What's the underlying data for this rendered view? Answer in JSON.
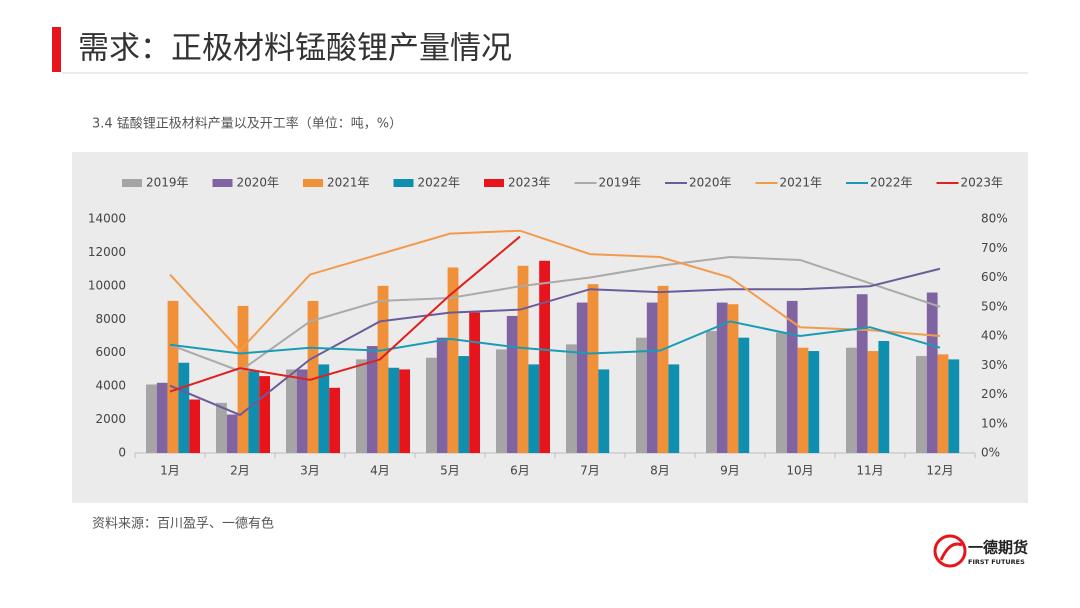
{
  "header": {
    "title": "需求：正极材料锰酸锂产量情况"
  },
  "chart_data": {
    "type": "combo",
    "title": "3.4 锰酸锂正极材料产量以及开工率（单位：吨，%）",
    "categories": [
      "1月",
      "2月",
      "3月",
      "4月",
      "5月",
      "6月",
      "7月",
      "8月",
      "9月",
      "10月",
      "11月",
      "12月"
    ],
    "ylim": [
      0,
      14000
    ],
    "yticks": [
      0,
      2000,
      4000,
      6000,
      8000,
      10000,
      12000,
      14000
    ],
    "y2lim": [
      0,
      80
    ],
    "y2ticks": [
      {
        "value": 0,
        "label": "0%"
      },
      {
        "value": 10,
        "label": "10%"
      },
      {
        "value": 20,
        "label": "20%"
      },
      {
        "value": 30,
        "label": "30%"
      },
      {
        "value": 40,
        "label": "40%"
      },
      {
        "value": 50,
        "label": "50%"
      },
      {
        "value": 60,
        "label": "60%"
      },
      {
        "value": 70,
        "label": "70%"
      },
      {
        "value": 80,
        "label": "80%"
      }
    ],
    "grid": false,
    "legend": "top",
    "series": [
      {
        "name": "2019年",
        "type": "bar",
        "color": "#a5a5a5",
        "values": [
          4100,
          3000,
          5000,
          5600,
          5700,
          6200,
          6500,
          6900,
          7300,
          7200,
          6300,
          5800
        ]
      },
      {
        "name": "2020年",
        "type": "bar",
        "color": "#8064a2",
        "values": [
          4200,
          2300,
          5000,
          6400,
          6900,
          8200,
          9000,
          9000,
          9000,
          9100,
          9500,
          9600
        ]
      },
      {
        "name": "2021年",
        "type": "bar",
        "color": "#f0913a",
        "values": [
          9100,
          8800,
          9100,
          10000,
          11100,
          11200,
          10100,
          10000,
          8900,
          6300,
          6100,
          5900
        ]
      },
      {
        "name": "2022年",
        "type": "bar",
        "color": "#0e8fb0",
        "values": [
          5400,
          4900,
          5300,
          5100,
          5800,
          5300,
          5000,
          5300,
          6900,
          6100,
          6700,
          5600
        ]
      },
      {
        "name": "2023年",
        "type": "bar",
        "color": "#e8141b",
        "values": [
          3200,
          4600,
          3900,
          5000,
          8400,
          11500,
          null,
          null,
          null,
          null,
          null,
          null
        ]
      },
      {
        "name": "2019年",
        "type": "line",
        "axis": "y2",
        "color": "#aaaaaa",
        "values": [
          37,
          28,
          45,
          52,
          53,
          57,
          60,
          64,
          67,
          66,
          58,
          50
        ]
      },
      {
        "name": "2020年",
        "type": "line",
        "axis": "y2",
        "color": "#6b5b9a",
        "values": [
          23,
          13,
          32,
          45,
          48,
          49,
          56,
          55,
          56,
          56,
          57,
          63
        ]
      },
      {
        "name": "2021年",
        "type": "line",
        "axis": "y2",
        "color": "#f39b4d",
        "values": [
          61,
          35,
          61,
          68,
          75,
          76,
          68,
          67,
          60,
          43,
          42,
          40
        ]
      },
      {
        "name": "2022年",
        "type": "line",
        "axis": "y2",
        "color": "#1a9bb5",
        "values": [
          37,
          34,
          36,
          35,
          39,
          36,
          34,
          35,
          45,
          40,
          43,
          36
        ]
      },
      {
        "name": "2023年",
        "type": "line",
        "axis": "y2",
        "color": "#e0201f",
        "values": [
          21,
          29,
          25,
          32,
          54,
          74,
          null,
          null,
          null,
          null,
          null,
          null
        ]
      }
    ]
  },
  "source": "资料来源：百川盈孚、一德有色",
  "logo": {
    "name": "一德期货",
    "english": "FIRST FUTURES"
  }
}
